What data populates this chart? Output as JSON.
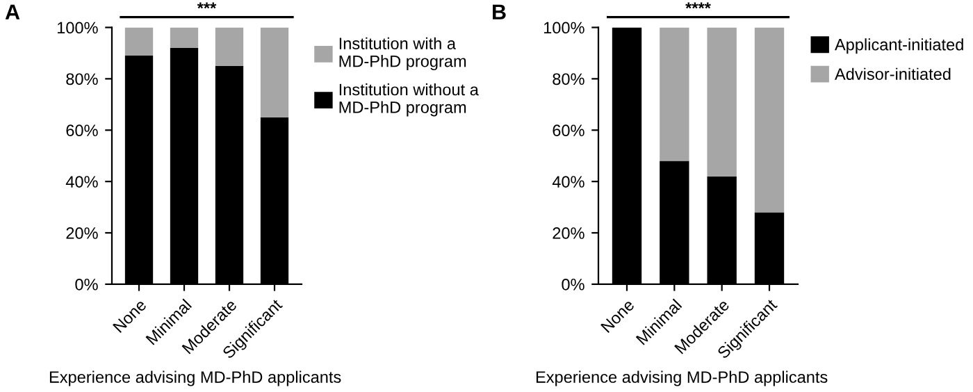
{
  "chart_data": [
    {
      "type": "bar",
      "title": "A",
      "xlabel": "Experience advising MD-PhD applicants",
      "categories": [
        "None",
        "Minimal",
        "Moderate",
        "Significant"
      ],
      "stacked": true,
      "series": [
        {
          "name": "Institution without a MD-PhD program",
          "color": "#000000",
          "values": [
            89,
            92,
            85,
            65
          ]
        },
        {
          "name": "Institution with a MD-PhD program",
          "color": "#a6a6a6",
          "values": [
            11,
            8,
            15,
            35
          ]
        }
      ],
      "ylim": [
        0,
        100
      ],
      "yticks": [
        {
          "value": 0,
          "label": "0%"
        },
        {
          "value": 20,
          "label": "20%"
        },
        {
          "value": 40,
          "label": "40%"
        },
        {
          "value": 60,
          "label": "60%"
        },
        {
          "value": 80,
          "label": "80%"
        },
        {
          "value": 100,
          "label": "100%"
        }
      ],
      "annotations": [
        "***"
      ],
      "legend": "right",
      "grid": false
    },
    {
      "type": "bar",
      "title": "B",
      "xlabel": "Experience advising MD-PhD applicants",
      "categories": [
        "None",
        "Minimal",
        "Moderate",
        "Significant"
      ],
      "stacked": true,
      "series": [
        {
          "name": "Applicant-initiated",
          "color": "#000000",
          "values": [
            100,
            48,
            42,
            28
          ]
        },
        {
          "name": "Advisor-initiated",
          "color": "#a6a6a6",
          "values": [
            0,
            52,
            58,
            72
          ]
        }
      ],
      "ylim": [
        0,
        100
      ],
      "yticks": [
        {
          "value": 0,
          "label": "0%"
        },
        {
          "value": 20,
          "label": "20%"
        },
        {
          "value": 40,
          "label": "40%"
        },
        {
          "value": 60,
          "label": "60%"
        },
        {
          "value": 80,
          "label": "80%"
        },
        {
          "value": 100,
          "label": "100%"
        }
      ],
      "annotations": [
        "****"
      ],
      "legend": "right",
      "grid": false
    }
  ]
}
